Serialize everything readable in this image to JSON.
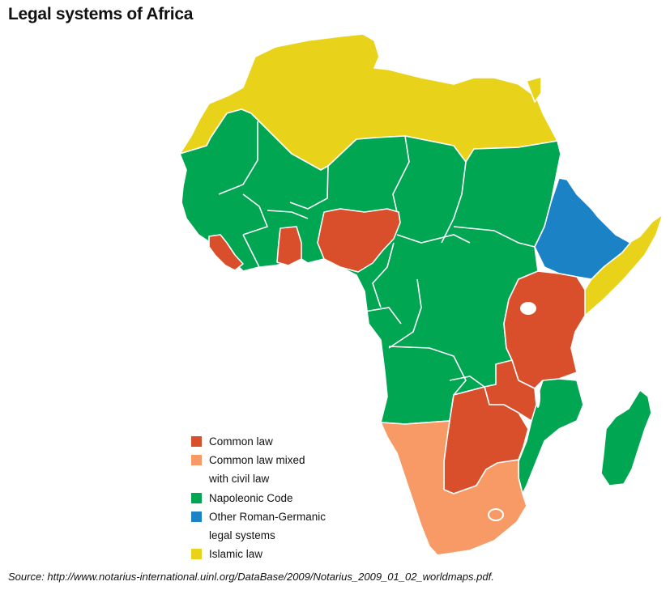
{
  "title": "Legal systems of Africa",
  "colors": {
    "common_law": "#d94f2b",
    "common_mixed_civil": "#f79a66",
    "napoleonic": "#00a651",
    "roman_germanic": "#1b82c6",
    "islamic": "#e8d31a",
    "border": "#ffffff"
  },
  "legend": {
    "common_law": "Common law",
    "common_mixed_1": "Common law mixed",
    "common_mixed_2": "with civil law",
    "napoleonic": "Napoleonic Code",
    "roman_1": "Other Roman-Germanic",
    "roman_2": "legal systems",
    "islamic": "Islamic law"
  },
  "source": "Source: http://www.notarius-international.uinl.org/DataBase/2009/Notarius_2009_01_02_worldmaps.pdf."
}
